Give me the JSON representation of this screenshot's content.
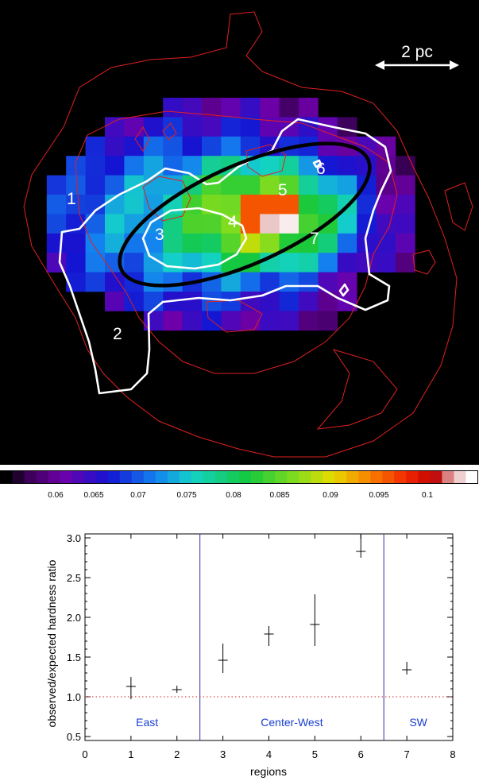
{
  "scale_bar": {
    "label": "2 pc"
  },
  "map": {
    "region_labels": [
      "1",
      "2",
      "3",
      "4",
      "5",
      "6",
      "7"
    ]
  },
  "colorbar": {
    "ticks": [
      "0.06",
      "0.065",
      "0.07",
      "0.075",
      "0.08",
      "0.085",
      "0.09",
      "0.095",
      "0.1"
    ]
  },
  "chart_data": {
    "type": "scatter",
    "xlabel": "regions",
    "ylabel": "observed/expected hardness ratio",
    "xlim": [
      0,
      8
    ],
    "ylim": [
      0.45,
      3.05
    ],
    "x_ticks": [
      "0",
      "1",
      "2",
      "3",
      "4",
      "5",
      "6",
      "7",
      "8"
    ],
    "y_ticks": [
      "0.5",
      "1.0",
      "1.5",
      "2.0",
      "2.5",
      "3.0"
    ],
    "points": [
      {
        "x": 1,
        "y": 1.13,
        "yerr_low": 0.97,
        "yerr_high": 1.25
      },
      {
        "x": 2,
        "y": 1.09,
        "yerr_low": 1.05,
        "yerr_high": 1.14
      },
      {
        "x": 3,
        "y": 1.46,
        "yerr_low": 1.3,
        "yerr_high": 1.67
      },
      {
        "x": 4,
        "y": 1.79,
        "yerr_low": 1.64,
        "yerr_high": 1.89
      },
      {
        "x": 5,
        "y": 1.91,
        "yerr_low": 1.64,
        "yerr_high": 2.29
      },
      {
        "x": 6,
        "y": 2.83,
        "yerr_low": 2.75,
        "yerr_high": 3.05
      },
      {
        "x": 7,
        "y": 1.34,
        "yerr_low": 1.28,
        "yerr_high": 1.44
      }
    ],
    "reference_line": {
      "y": 1.0,
      "style": "dotted",
      "color": "#d02020"
    },
    "dividers": [
      2.5,
      6.5
    ],
    "groups": [
      {
        "label": "East",
        "x": 1.35
      },
      {
        "label": "Center-West",
        "x": 4.5
      },
      {
        "label": "SW",
        "x": 7.25
      }
    ],
    "colors": {
      "divider": "#3030a0",
      "group_label": "#1a3fd0",
      "points": "#000000"
    }
  }
}
